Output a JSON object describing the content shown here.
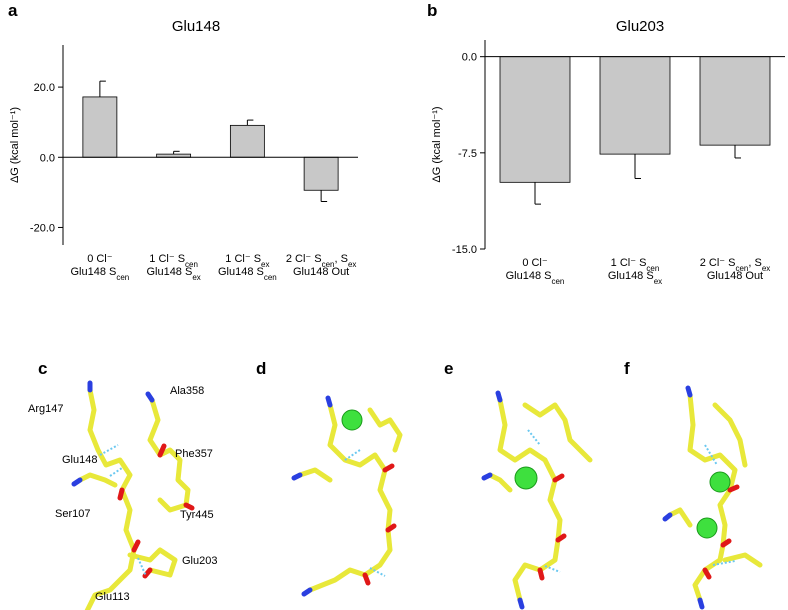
{
  "chart_data": [
    {
      "type": "bar",
      "title": "Glu148",
      "panel": "a",
      "y_label": "ΔG (kcal mol⁻¹)",
      "categories": [
        [
          [
            "0 Cl⁻"
          ],
          [
            "Glu148 S",
            "cen"
          ]
        ],
        [
          [
            "1 Cl⁻ S",
            "cen"
          ],
          [
            "Glu148 S",
            "ex"
          ]
        ],
        [
          [
            "1 Cl⁻ S",
            "ex"
          ],
          [
            "Glu148 S",
            "cen"
          ]
        ],
        [
          [
            "2 Cl⁻ S",
            "cen",
            ", S",
            "ex"
          ],
          [
            "Glu148 Out"
          ]
        ]
      ],
      "values": [
        17.2,
        0.9,
        9.1,
        -9.4
      ],
      "errors": [
        4.5,
        0.8,
        1.5,
        3.2
      ],
      "color": "#c8c8c8",
      "ylim": [
        -25,
        32
      ],
      "yticks": [
        {
          "value": 20,
          "label": "20.0"
        },
        {
          "value": 0,
          "label": "0.0"
        },
        {
          "value": -20,
          "label": "-20.0"
        }
      ]
    },
    {
      "type": "bar",
      "title": "Glu203",
      "panel": "b",
      "y_label": "ΔG (kcal mol⁻¹)",
      "categories": [
        [
          [
            "0 Cl⁻"
          ],
          [
            "Glu148 S",
            "cen"
          ]
        ],
        [
          [
            "1 Cl⁻ S",
            "cen"
          ],
          [
            "Glu148 S",
            "ex"
          ]
        ],
        [
          [
            "2 Cl⁻ S",
            "cen",
            ", S",
            "ex"
          ],
          [
            "Glu148 Out"
          ]
        ]
      ],
      "values": [
        -9.8,
        -7.6,
        -6.9
      ],
      "errors": [
        1.7,
        1.9,
        1.0
      ],
      "color": "#c8c8c8",
      "ylim": [
        -15,
        1.3
      ],
      "yticks": [
        {
          "value": 0,
          "label": "0.0"
        },
        {
          "value": -7.5,
          "label": "-7.5"
        },
        {
          "value": -15,
          "label": "-15.0"
        }
      ]
    }
  ],
  "structure_panels": [
    "c",
    "d",
    "e",
    "f"
  ],
  "residue_labels": [
    "Arg147",
    "Ala358",
    "Glu148",
    "Phe357",
    "Ser107",
    "Tyr445",
    "Glu203",
    "Glu113"
  ]
}
